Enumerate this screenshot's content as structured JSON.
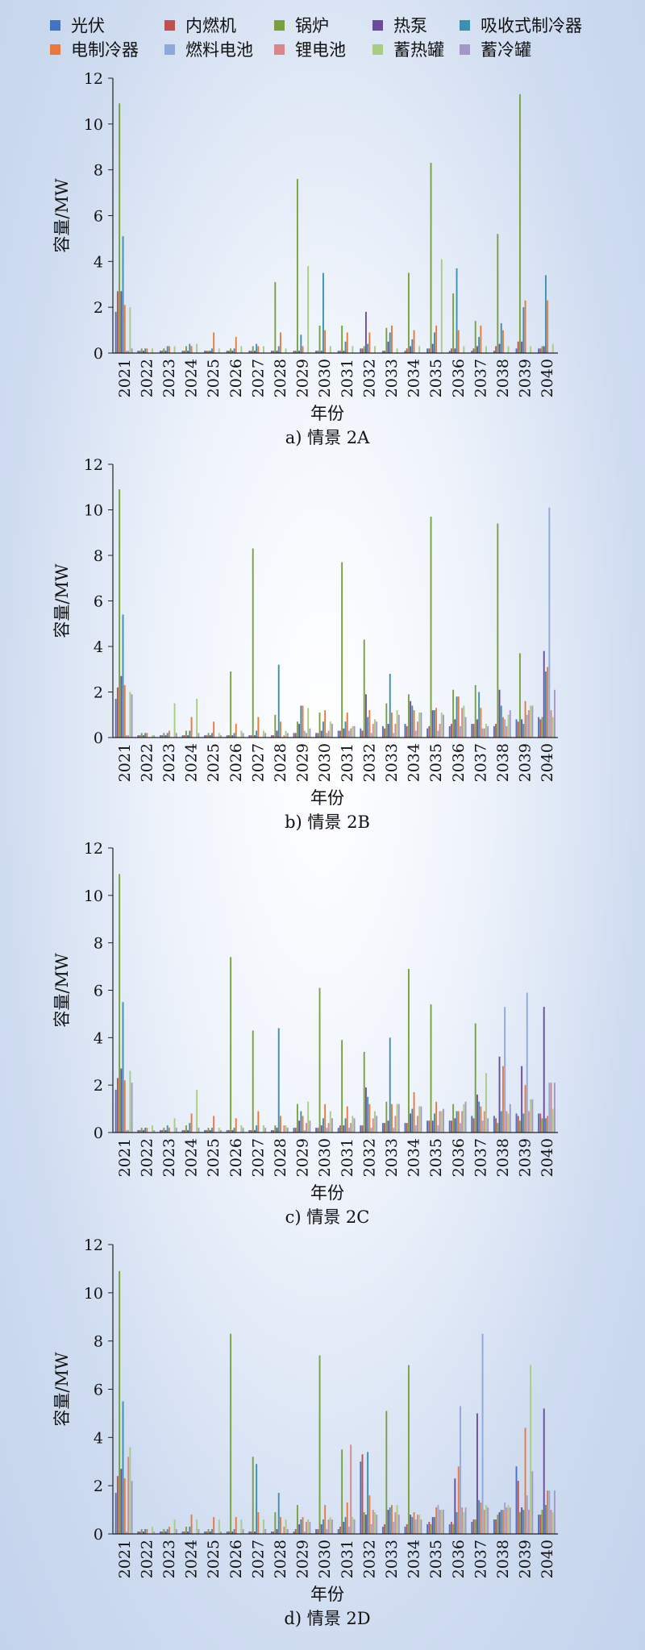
{
  "legend": [
    {
      "name": "光伏",
      "color": "#4472c4"
    },
    {
      "name": "内燃机",
      "color": "#c0504d"
    },
    {
      "name": "锅炉",
      "color": "#77a040"
    },
    {
      "name": "热泵",
      "color": "#6a4c9c"
    },
    {
      "name": "吸收式制冷器",
      "color": "#3d8fb0"
    },
    {
      "name": "电制冷器",
      "color": "#e8793a"
    },
    {
      "name": "燃料电池",
      "color": "#8fa8dc"
    },
    {
      "name": "锂电池",
      "color": "#d9868a"
    },
    {
      "name": "蓄热罐",
      "color": "#a8cc80"
    },
    {
      "name": "蓄冷罐",
      "color": "#a497c8"
    }
  ],
  "chart_data": [
    {
      "type": "bar",
      "caption": "a) 情景 2A",
      "xlabel": "年份",
      "ylabel": "容量/MW",
      "ylim": [
        0,
        12
      ],
      "yticks": [
        0,
        2,
        4,
        6,
        8,
        10,
        12
      ],
      "categories": [
        "2021",
        "2022",
        "2023",
        "2024",
        "2025",
        "2026",
        "2027",
        "2028",
        "2029",
        "2030",
        "2031",
        "2032",
        "2033",
        "2034",
        "2035",
        "2036",
        "2037",
        "2038",
        "2039",
        "2040"
      ],
      "series": [
        {
          "name": "光伏",
          "values": [
            1.8,
            0.1,
            0.1,
            0.1,
            0.1,
            0.1,
            0.1,
            0.1,
            0.1,
            0.1,
            0.1,
            0.2,
            0.1,
            0.1,
            0.2,
            0.1,
            0.1,
            0.1,
            0.2,
            0.2
          ]
        },
        {
          "name": "内燃机",
          "values": [
            2.7,
            0.1,
            0.1,
            0.1,
            0.1,
            0.1,
            0.1,
            0.1,
            0.1,
            0.1,
            0.1,
            0.2,
            0.1,
            0.2,
            0.2,
            0.2,
            0.2,
            0.3,
            0.5,
            0.2
          ]
        },
        {
          "name": "锅炉",
          "values": [
            10.9,
            0.2,
            0.2,
            0.3,
            0.1,
            0.2,
            0.3,
            3.1,
            7.6,
            1.2,
            1.2,
            0.3,
            1.1,
            3.5,
            8.3,
            2.6,
            1.4,
            5.2,
            11.3,
            0.3
          ]
        },
        {
          "name": "热泵",
          "values": [
            2.7,
            0.1,
            0.1,
            0.1,
            0.1,
            0.1,
            0.1,
            0.1,
            0.1,
            0.1,
            0.1,
            1.8,
            0.5,
            0.3,
            0.4,
            0.2,
            0.3,
            0.4,
            0.5,
            0.3
          ]
        },
        {
          "name": "吸收式制冷器",
          "values": [
            5.1,
            0.2,
            0.3,
            0.4,
            0.2,
            0.2,
            0.4,
            0.3,
            0.8,
            3.5,
            0.5,
            0.4,
            0.9,
            0.6,
            0.9,
            3.7,
            0.7,
            1.3,
            2.0,
            3.4
          ]
        },
        {
          "name": "电制冷器",
          "values": [
            2.1,
            0.2,
            0.3,
            0.3,
            0.9,
            0.7,
            0.3,
            0.9,
            0.3,
            1.0,
            0.9,
            0.9,
            1.2,
            1.0,
            1.2,
            1.0,
            1.2,
            1.0,
            2.3,
            2.3
          ]
        },
        {
          "name": "燃料电池",
          "values": [
            0.1,
            0.0,
            0.0,
            0.0,
            0.0,
            0.0,
            0.0,
            0.0,
            0.0,
            0.0,
            0.0,
            0.0,
            0.0,
            0.0,
            0.0,
            0.0,
            0.0,
            0.0,
            0.0,
            0.0
          ]
        },
        {
          "name": "锂电池",
          "values": [
            0.1,
            0.0,
            0.0,
            0.0,
            0.0,
            0.0,
            0.0,
            0.0,
            0.0,
            0.0,
            0.0,
            0.0,
            0.0,
            0.0,
            0.0,
            0.0,
            0.0,
            0.0,
            0.0,
            0.0
          ]
        },
        {
          "name": "蓄热罐",
          "values": [
            2.0,
            0.2,
            0.3,
            0.4,
            0.2,
            0.3,
            0.3,
            0.2,
            3.8,
            0.3,
            0.3,
            0.3,
            0.2,
            0.3,
            4.1,
            0.3,
            0.3,
            0.3,
            0.3,
            0.4
          ]
        },
        {
          "name": "蓄冷罐",
          "values": [
            0.2,
            0.0,
            0.0,
            0.0,
            0.0,
            0.0,
            0.0,
            0.0,
            0.0,
            0.0,
            0.0,
            0.0,
            0.0,
            0.0,
            0.0,
            0.0,
            0.0,
            0.0,
            0.0,
            0.0
          ]
        }
      ]
    },
    {
      "type": "bar",
      "caption": "b) 情景 2B",
      "xlabel": "年份",
      "ylabel": "容量/MW",
      "ylim": [
        0,
        12
      ],
      "yticks": [
        0,
        2,
        4,
        6,
        8,
        10,
        12
      ],
      "categories": [
        "2021",
        "2022",
        "2023",
        "2024",
        "2025",
        "2026",
        "2027",
        "2028",
        "2029",
        "2030",
        "2031",
        "2032",
        "2033",
        "2034",
        "2035",
        "2036",
        "2037",
        "2038",
        "2039",
        "2040"
      ],
      "series": [
        {
          "name": "光伏",
          "values": [
            1.7,
            0.1,
            0.1,
            0.1,
            0.1,
            0.1,
            0.1,
            0.1,
            0.2,
            0.2,
            0.3,
            0.4,
            0.5,
            0.6,
            0.4,
            0.5,
            0.6,
            0.5,
            0.8,
            0.9
          ]
        },
        {
          "name": "内燃机",
          "values": [
            2.2,
            0.1,
            0.1,
            0.1,
            0.1,
            0.1,
            0.1,
            0.1,
            0.2,
            0.2,
            0.3,
            0.3,
            0.4,
            0.5,
            0.5,
            0.6,
            0.6,
            0.6,
            0.7,
            0.8
          ]
        },
        {
          "name": "锅炉",
          "values": [
            10.9,
            0.2,
            0.2,
            0.3,
            0.2,
            2.9,
            8.3,
            1.0,
            0.7,
            1.1,
            7.7,
            4.3,
            1.5,
            1.9,
            9.7,
            2.1,
            2.3,
            9.4,
            3.7,
            0.9
          ]
        },
        {
          "name": "热泵",
          "values": [
            2.7,
            0.1,
            0.1,
            0.1,
            0.1,
            0.1,
            0.1,
            0.3,
            0.6,
            0.3,
            0.4,
            1.9,
            0.6,
            1.6,
            1.2,
            0.8,
            0.8,
            2.1,
            0.8,
            3.8
          ]
        },
        {
          "name": "吸收式制冷器",
          "values": [
            5.4,
            0.2,
            0.2,
            0.3,
            0.2,
            0.2,
            0.3,
            3.2,
            1.4,
            0.7,
            0.7,
            0.9,
            2.8,
            1.4,
            1.2,
            1.8,
            2.0,
            1.4,
            0.6,
            2.9
          ]
        },
        {
          "name": "电制冷器",
          "values": [
            2.3,
            0.2,
            0.3,
            0.9,
            0.7,
            0.6,
            0.9,
            0.7,
            1.4,
            1.2,
            1.1,
            1.2,
            1.1,
            1.2,
            1.3,
            1.8,
            1.3,
            0.9,
            1.6,
            3.1
          ]
        },
        {
          "name": "燃料电池",
          "values": [
            0.1,
            0.0,
            0.0,
            0.0,
            0.0,
            0.0,
            0.0,
            0.0,
            0.3,
            0.2,
            0.3,
            0.2,
            0.2,
            0.3,
            0.3,
            0.5,
            0.4,
            0.8,
            1.0,
            10.1
          ]
        },
        {
          "name": "锂电池",
          "values": [
            0.1,
            0.0,
            0.0,
            0.0,
            0.0,
            0.0,
            0.0,
            0.1,
            0.2,
            0.3,
            0.4,
            0.6,
            0.6,
            0.7,
            0.6,
            1.3,
            0.4,
            0.5,
            1.2,
            1.2
          ]
        },
        {
          "name": "蓄热罐",
          "values": [
            2.0,
            0.1,
            1.5,
            1.7,
            0.2,
            0.3,
            0.3,
            0.3,
            1.3,
            0.7,
            0.5,
            0.8,
            1.2,
            1.1,
            1.1,
            1.4,
            0.6,
            1.0,
            1.4,
            0.9
          ]
        },
        {
          "name": "蓄冷罐",
          "values": [
            1.9,
            0.1,
            0.2,
            0.2,
            0.1,
            0.2,
            0.2,
            0.2,
            0.4,
            0.6,
            0.5,
            0.7,
            1.0,
            1.1,
            1.0,
            0.9,
            0.5,
            1.2,
            1.4,
            2.1
          ]
        }
      ]
    },
    {
      "type": "bar",
      "caption": "c) 情景 2C",
      "xlabel": "年份",
      "ylabel": "容量/MW",
      "ylim": [
        0,
        12
      ],
      "yticks": [
        0,
        2,
        4,
        6,
        8,
        10,
        12
      ],
      "categories": [
        "2021",
        "2022",
        "2023",
        "2024",
        "2025",
        "2026",
        "2027",
        "2028",
        "2029",
        "2030",
        "2031",
        "2032",
        "2033",
        "2034",
        "2035",
        "2036",
        "2037",
        "2038",
        "2039",
        "2040"
      ],
      "series": [
        {
          "name": "光伏",
          "values": [
            1.8,
            0.1,
            0.1,
            0.1,
            0.1,
            0.1,
            0.1,
            0.1,
            0.2,
            0.2,
            0.2,
            0.3,
            0.4,
            0.4,
            0.5,
            0.5,
            0.7,
            0.7,
            0.8,
            0.8
          ]
        },
        {
          "name": "内燃机",
          "values": [
            2.3,
            0.1,
            0.1,
            0.1,
            0.1,
            0.1,
            0.1,
            0.1,
            0.2,
            0.2,
            0.3,
            0.3,
            0.4,
            0.4,
            0.5,
            0.5,
            0.6,
            0.6,
            0.7,
            0.8
          ]
        },
        {
          "name": "锅炉",
          "values": [
            10.9,
            0.2,
            0.2,
            0.3,
            0.2,
            7.4,
            4.3,
            0.3,
            1.2,
            6.1,
            3.9,
            3.4,
            1.3,
            6.9,
            5.4,
            1.2,
            4.6,
            0.4,
            0.5,
            0.6
          ]
        },
        {
          "name": "热泵",
          "values": [
            2.7,
            0.1,
            0.1,
            0.1,
            0.1,
            0.1,
            0.1,
            0.2,
            0.5,
            0.3,
            0.3,
            1.9,
            0.5,
            0.8,
            0.5,
            0.6,
            1.6,
            3.2,
            2.8,
            5.3
          ]
        },
        {
          "name": "吸收式制冷器",
          "values": [
            5.5,
            0.2,
            0.3,
            0.4,
            0.2,
            0.2,
            0.3,
            4.4,
            0.9,
            0.6,
            0.6,
            1.5,
            4.0,
            1.0,
            0.8,
            0.9,
            1.3,
            0.9,
            0.8,
            0.6
          ]
        },
        {
          "name": "电制冷器",
          "values": [
            2.2,
            0.2,
            0.2,
            0.8,
            0.7,
            0.6,
            0.9,
            0.7,
            0.7,
            1.2,
            1.1,
            1.2,
            1.2,
            1.7,
            1.3,
            0.9,
            1.1,
            2.8,
            2.0,
            0.7
          ]
        },
        {
          "name": "燃料电池",
          "values": [
            0.1,
            0.0,
            0.0,
            0.0,
            0.0,
            0.0,
            0.0,
            0.0,
            0.1,
            0.2,
            0.2,
            0.2,
            0.2,
            0.3,
            0.3,
            0.4,
            0.5,
            5.3,
            5.9,
            2.1
          ]
        },
        {
          "name": "锂电池",
          "values": [
            0.1,
            0.0,
            0.0,
            0.0,
            0.0,
            0.0,
            0.0,
            0.3,
            0.4,
            0.4,
            0.4,
            0.6,
            0.7,
            0.7,
            0.9,
            0.9,
            0.9,
            0.9,
            0.9,
            2.1
          ]
        },
        {
          "name": "蓄热罐",
          "values": [
            2.6,
            0.3,
            0.6,
            1.8,
            0.2,
            0.3,
            0.3,
            0.3,
            1.3,
            0.9,
            0.7,
            0.9,
            1.2,
            1.1,
            0.9,
            1.2,
            2.5,
            0.8,
            1.4,
            1.0
          ]
        },
        {
          "name": "蓄冷罐",
          "values": [
            2.1,
            0.1,
            0.2,
            0.2,
            0.1,
            0.2,
            0.2,
            0.2,
            0.5,
            0.6,
            0.6,
            0.7,
            1.2,
            1.1,
            1.0,
            1.3,
            0.6,
            1.2,
            1.4,
            2.1
          ]
        }
      ]
    },
    {
      "type": "bar",
      "caption": "d) 情景 2D",
      "xlabel": "年份",
      "ylabel": "容量/MW",
      "ylim": [
        0,
        12
      ],
      "yticks": [
        0,
        2,
        4,
        6,
        8,
        10,
        12
      ],
      "categories": [
        "2021",
        "2022",
        "2023",
        "2024",
        "2025",
        "2026",
        "2027",
        "2028",
        "2029",
        "2030",
        "2031",
        "2032",
        "2033",
        "2034",
        "2035",
        "2036",
        "2037",
        "2038",
        "2039",
        "2040"
      ],
      "series": [
        {
          "name": "光伏",
          "values": [
            1.7,
            0.1,
            0.1,
            0.1,
            0.1,
            0.1,
            0.1,
            0.1,
            0.1,
            0.2,
            0.2,
            3.0,
            0.3,
            0.3,
            0.4,
            0.4,
            0.5,
            0.6,
            2.8,
            0.8
          ]
        },
        {
          "name": "内燃机",
          "values": [
            2.4,
            0.1,
            0.1,
            0.1,
            0.1,
            0.1,
            0.1,
            0.1,
            0.2,
            0.2,
            0.3,
            3.3,
            0.4,
            0.4,
            0.5,
            0.5,
            0.6,
            0.6,
            2.2,
            0.8
          ]
        },
        {
          "name": "锅炉",
          "values": [
            10.9,
            0.2,
            0.2,
            0.3,
            0.2,
            8.3,
            3.2,
            0.9,
            1.2,
            7.4,
            3.5,
            0.9,
            5.1,
            7.0,
            0.4,
            0.4,
            0.6,
            0.8,
            0.9,
            1.0
          ]
        },
        {
          "name": "热泵",
          "values": [
            2.7,
            0.1,
            0.1,
            0.1,
            0.1,
            0.1,
            0.1,
            0.2,
            0.4,
            0.4,
            0.5,
            0.8,
            1.0,
            0.8,
            0.7,
            2.3,
            5.0,
            0.9,
            1.1,
            5.2
          ]
        },
        {
          "name": "吸收式制冷器",
          "values": [
            5.5,
            0.2,
            0.2,
            0.3,
            0.2,
            0.2,
            2.9,
            1.7,
            0.6,
            0.6,
            0.7,
            3.4,
            1.1,
            0.7,
            0.7,
            0.9,
            1.4,
            1.0,
            1.0,
            1.2
          ]
        },
        {
          "name": "电制冷器",
          "values": [
            2.3,
            0.2,
            0.3,
            0.8,
            0.7,
            0.7,
            0.9,
            0.7,
            0.7,
            1.2,
            1.3,
            1.6,
            1.2,
            0.9,
            1.1,
            2.8,
            1.3,
            1.0,
            4.4,
            1.8
          ]
        },
        {
          "name": "燃料电池",
          "values": [
            0.1,
            0.0,
            0.0,
            0.0,
            0.0,
            0.0,
            0.0,
            0.0,
            0.1,
            0.2,
            0.3,
            0.4,
            0.5,
            0.6,
            1.2,
            5.3,
            8.3,
            1.3,
            1.6,
            1.8
          ]
        },
        {
          "name": "锂电池",
          "values": [
            3.2,
            0.0,
            0.0,
            0.0,
            0.0,
            0.0,
            0.0,
            0.3,
            0.5,
            0.6,
            3.7,
            1.0,
            0.9,
            0.8,
            1.0,
            1.1,
            1.0,
            1.1,
            1.0,
            1.0
          ]
        },
        {
          "name": "蓄热罐",
          "values": [
            3.6,
            0.3,
            0.6,
            0.6,
            0.6,
            0.6,
            0.6,
            0.6,
            0.6,
            0.7,
            0.7,
            0.9,
            1.2,
            0.8,
            1.0,
            0.9,
            1.2,
            1.2,
            7.0,
            0.9
          ]
        },
        {
          "name": "蓄冷罐",
          "values": [
            2.2,
            0.1,
            0.2,
            0.2,
            0.1,
            0.2,
            0.2,
            0.2,
            0.5,
            0.6,
            0.6,
            0.8,
            0.8,
            0.6,
            1.0,
            1.1,
            1.1,
            1.1,
            2.6,
            1.8
          ]
        }
      ]
    }
  ]
}
